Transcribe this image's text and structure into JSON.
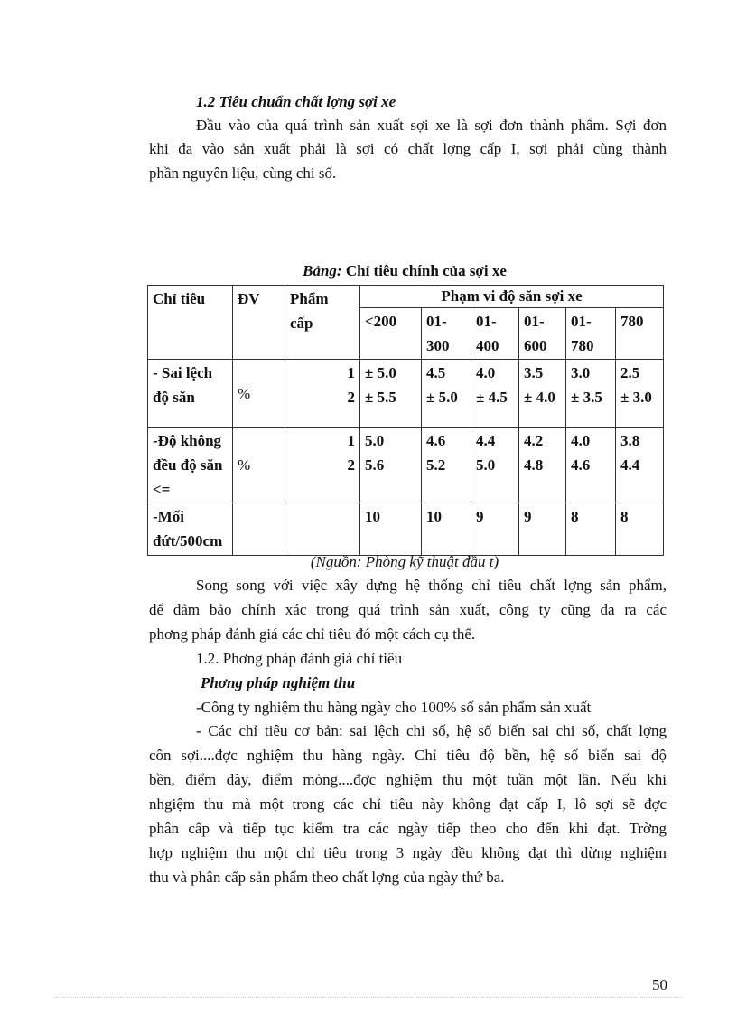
{
  "section_heading": "1.2 Tiêu chuẩn chất  lợng   sợi xe",
  "intro_lines": [
    "Đầu vào của quá trình sản xuất sợi xe là sợi đơn thành phẩm. Sợi đơn",
    "khi đa   vào sản xuất phải là sợi có chất lợng   cấp I, sợi phải cùng thành",
    "phần nguyên liệu, cùng chi số."
  ],
  "table": {
    "caption_prefix": "Bảng:",
    "caption": "Chỉ tiêu chính của sợi xe",
    "headers": {
      "chi_tieu": "Chỉ tiêu",
      "dv": "ĐV",
      "pham_cap": "Phẩm cấp",
      "range_group": "Phạm vi độ săn sợi xe",
      "ranges": [
        "<200",
        "01-300",
        "01-400",
        "01-600",
        "01-780",
        "780"
      ]
    },
    "rows": [
      {
        "name": "- Sai lệch độ săn",
        "unit": "%",
        "grades": "1\n2",
        "values": [
          "± 5.0\n± 5.5",
          "4.5\n± 5.0",
          "4.0\n± 4.5",
          "3.5\n± 4.0",
          "3.0\n± 3.5",
          "2.5\n± 3.0"
        ]
      },
      {
        "name": "-Độ không đều độ săn <=",
        "unit": "%",
        "grades": "1\n2",
        "values": [
          "5.0\n5.6",
          "4.6\n5.2",
          "4.4\n5.0",
          "4.2\n4.8",
          "4.0\n4.6",
          "3.8\n4.4"
        ]
      },
      {
        "name": "-Mối đứt/500cm",
        "unit": "",
        "grades": "",
        "values": [
          "10",
          "10",
          "9",
          "9",
          "8",
          "8"
        ]
      }
    ],
    "source": "(Nguồn: Phòng kỹ thuật đầu t)"
  },
  "para2_lines": [
    "Song song với việc xây dựng hệ thống chỉ tiêu chất  lợng   sản phẩm,",
    "để đảm bảo chính xác trong quá trình sản xuất, công ty cũng  đa   ra các",
    "phơng   pháp  đánh giá các chỉ tiêu đó một cách cụ thể."
  ],
  "subsection": "1.2. Phơng   pháp đánh giá chỉ tiêu",
  "subheading": "Phơng   pháp nghiệm thu",
  "bullet1": "-Công ty nghiệm thu hàng ngày cho 100% số sản phẩm sản xuất",
  "para3_lines": [
    "- Các chỉ tiêu cơ bản: sai lệch chi số, hệ số biến sai chi số, chất  lợng",
    "côn sợi....đợc   nghiệm thu hàng ngày. Chỉ tiêu độ bền, hệ số biến sai độ",
    "bền, điểm dày, điểm mỏng....đợc   nghiệm thu một tuần một lần. Nếu khi",
    "nhgiệm thu mà một trong các chỉ tiêu này không đạt cấp I, lô sợi sẽ đợc",
    "phân cấp và tiếp tục kiểm  tra các ngày tiếp theo cho đến khi đạt. Trờng",
    "hợp nghiệm thu một chỉ tiêu trong 3 ngày đều không đạt thì dừng nghiệm",
    "thu và phân cấp sản phẩm theo chất  lợng   của ngày thứ ba."
  ],
  "page_number": "50"
}
